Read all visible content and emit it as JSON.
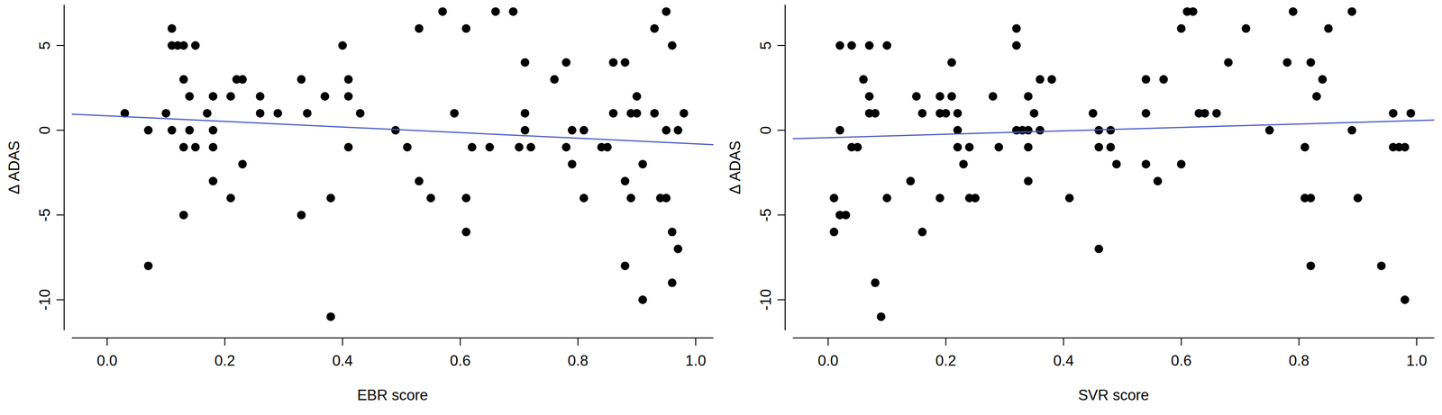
{
  "chart_data": [
    {
      "type": "scatter",
      "xlabel": "EBR score",
      "ylabel": "Δ ADAS",
      "xlim": [
        -0.06,
        1.03
      ],
      "ylim": [
        -11.8,
        7.4
      ],
      "xticks": [
        {
          "value": 0,
          "label": "0.0"
        },
        0.2,
        0.4,
        0.6,
        0.8,
        {
          "value": 1,
          "label": "1.0"
        }
      ],
      "yticks": [
        -10,
        -5,
        0,
        5
      ],
      "series": [
        {
          "type": "scatter",
          "color": "#000000",
          "marker": "circle",
          "x": [
            0.03,
            0.07,
            0.07,
            0.1,
            0.11,
            0.11,
            0.12,
            0.11,
            0.13,
            0.13,
            0.13,
            0.13,
            0.14,
            0.14,
            0.15,
            0.15,
            0.17,
            0.18,
            0.18,
            0.18,
            0.18,
            0.21,
            0.21,
            0.22,
            0.23,
            0.23,
            0.26,
            0.26,
            0.29,
            0.33,
            0.33,
            0.34,
            0.37,
            0.38,
            0.38,
            0.4,
            0.41,
            0.41,
            0.41,
            0.43,
            0.49,
            0.51,
            0.53,
            0.53,
            0.55,
            0.57,
            0.59,
            0.61,
            0.61,
            0.61,
            0.62,
            0.65,
            0.66,
            0.69,
            0.7,
            0.71,
            0.71,
            0.71,
            0.72,
            0.76,
            0.78,
            0.78,
            0.79,
            0.79,
            0.81,
            0.81,
            0.84,
            0.85,
            0.86,
            0.86,
            0.88,
            0.88,
            0.88,
            0.89,
            0.89,
            0.9,
            0.9,
            0.91,
            0.91,
            0.93,
            0.93,
            0.94,
            0.95,
            0.95,
            0.95,
            0.96,
            0.96,
            0.96,
            0.97,
            0.97,
            0.98
          ],
          "values": [
            1,
            0,
            -8,
            1,
            6,
            5,
            5,
            0,
            3,
            5,
            -1,
            -5,
            2,
            0,
            5,
            -1,
            1,
            2,
            0,
            -1,
            -3,
            2,
            -4,
            3,
            3,
            -2,
            2,
            1,
            1,
            3,
            -5,
            1,
            2,
            -4,
            -11,
            5,
            3,
            2,
            -1,
            1,
            0,
            -1,
            6,
            -3,
            -4,
            7,
            1,
            6,
            -4,
            -6,
            -1,
            -1,
            7,
            7,
            -1,
            4,
            1,
            0,
            -1,
            3,
            4,
            -1,
            -2,
            0,
            0,
            -4,
            -1,
            -1,
            4,
            1,
            4,
            -3,
            -8,
            1,
            -4,
            2,
            1,
            -2,
            -10,
            6,
            1,
            -4,
            7,
            -4,
            0,
            5,
            -6,
            -9,
            0,
            -7,
            1
          ]
        },
        {
          "type": "line",
          "color": "#4a5cc4",
          "line_style": "solid",
          "x": [
            -0.06,
            1.03
          ],
          "values": [
            0.95,
            -0.85
          ]
        }
      ]
    },
    {
      "type": "scatter",
      "xlabel": "SVR score",
      "ylabel": "Δ ADAS",
      "xlim": [
        -0.06,
        1.03
      ],
      "ylim": [
        -11.8,
        7.4
      ],
      "xticks": [
        {
          "value": 0,
          "label": "0.0"
        },
        0.2,
        0.4,
        0.6,
        0.8,
        {
          "value": 1,
          "label": "1.0"
        }
      ],
      "yticks": [
        -10,
        -5,
        0,
        5
      ],
      "series": [
        {
          "type": "scatter",
          "color": "#000000",
          "marker": "circle",
          "x": [
            0.01,
            0.01,
            0.02,
            0.02,
            0.02,
            0.03,
            0.04,
            0.04,
            0.05,
            0.06,
            0.07,
            0.07,
            0.07,
            0.08,
            0.08,
            0.09,
            0.1,
            0.1,
            0.14,
            0.15,
            0.16,
            0.16,
            0.19,
            0.19,
            0.19,
            0.2,
            0.21,
            0.21,
            0.22,
            0.22,
            0.22,
            0.23,
            0.24,
            0.24,
            0.25,
            0.28,
            0.29,
            0.32,
            0.32,
            0.32,
            0.33,
            0.34,
            0.34,
            0.34,
            0.34,
            0.35,
            0.36,
            0.36,
            0.38,
            0.41,
            0.45,
            0.46,
            0.46,
            0.46,
            0.48,
            0.48,
            0.49,
            0.54,
            0.54,
            0.54,
            0.56,
            0.57,
            0.6,
            0.6,
            0.61,
            0.62,
            0.63,
            0.64,
            0.66,
            0.68,
            0.71,
            0.75,
            0.78,
            0.79,
            0.81,
            0.81,
            0.82,
            0.82,
            0.82,
            0.83,
            0.84,
            0.85,
            0.89,
            0.89,
            0.9,
            0.94,
            0.96,
            0.96,
            0.97,
            0.98,
            0.98,
            0.99
          ],
          "values": [
            -4,
            -6,
            5,
            0,
            -5,
            -5,
            5,
            -1,
            -1,
            3,
            5,
            2,
            1,
            1,
            -9,
            -11,
            5,
            -4,
            -3,
            2,
            1,
            -6,
            2,
            1,
            -4,
            1,
            4,
            2,
            1,
            0,
            -1,
            -2,
            -1,
            -4,
            -4,
            2,
            -1,
            6,
            5,
            0,
            0,
            2,
            0,
            -1,
            -3,
            1,
            3,
            0,
            3,
            -4,
            1,
            0,
            -1,
            -7,
            0,
            -1,
            -2,
            3,
            1,
            -2,
            -3,
            3,
            6,
            -2,
            7,
            7,
            1,
            1,
            1,
            4,
            6,
            0,
            4,
            7,
            -1,
            -4,
            4,
            -4,
            -8,
            2,
            3,
            6,
            7,
            0,
            -4,
            -8,
            1,
            -1,
            -1,
            -1,
            -10,
            1
          ]
        },
        {
          "type": "line",
          "color": "#4a5cc4",
          "line_style": "solid",
          "x": [
            -0.06,
            1.03
          ],
          "values": [
            -0.5,
            0.6
          ]
        }
      ]
    }
  ]
}
